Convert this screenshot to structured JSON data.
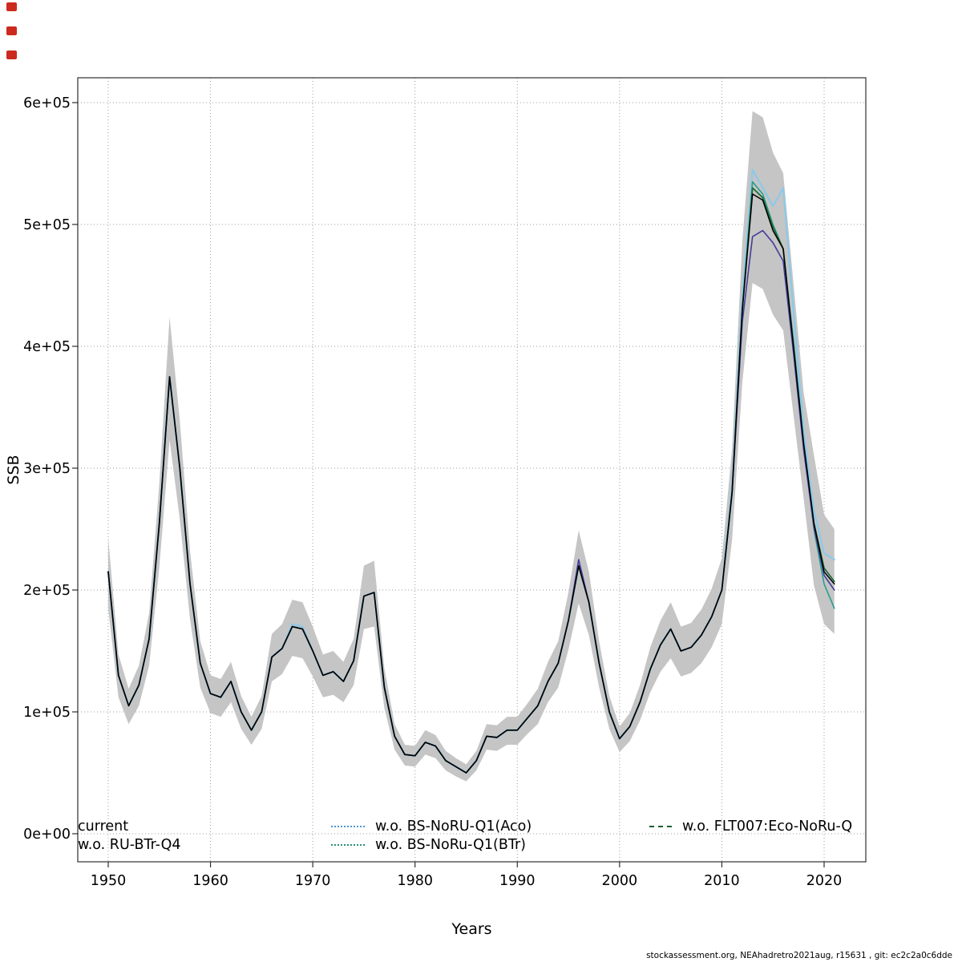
{
  "artifacts": {
    "squares": [
      {
        "color": "#cc2a1e"
      },
      {
        "color": "#cc2a1e"
      },
      {
        "color": "#cc2a1e"
      }
    ]
  },
  "footer": {
    "text": "stockassessment.org, NEAhadretro2021aug, r15631 , git: ec2c2a0c6dde"
  },
  "chart_data": {
    "type": "line",
    "title": "",
    "xlabel": "Years",
    "ylabel": "SSB",
    "xlim": [
      1948.5,
      2023.5
    ],
    "ylim": [
      0,
      620000
    ],
    "grid": true,
    "grid_color": "#9c9c9c",
    "frame_color": "#2f2f2f",
    "x_ticks": [
      1950,
      1960,
      1970,
      1980,
      1990,
      2000,
      2010,
      2020
    ],
    "y_ticks": [
      {
        "value": 0,
        "label": "0e+00"
      },
      {
        "value": 100000,
        "label": "1e+05"
      },
      {
        "value": 200000,
        "label": "2e+05"
      },
      {
        "value": 300000,
        "label": "3e+05"
      },
      {
        "value": 400000,
        "label": "4e+05"
      },
      {
        "value": 500000,
        "label": "5e+05"
      },
      {
        "value": 600000,
        "label": "6e+05"
      }
    ],
    "x": [
      1950,
      1951,
      1952,
      1953,
      1954,
      1955,
      1956,
      1957,
      1958,
      1959,
      1960,
      1961,
      1962,
      1963,
      1964,
      1965,
      1966,
      1967,
      1968,
      1969,
      1970,
      1971,
      1972,
      1973,
      1974,
      1975,
      1976,
      1977,
      1978,
      1979,
      1980,
      1981,
      1982,
      1983,
      1984,
      1985,
      1986,
      1987,
      1988,
      1989,
      1990,
      1991,
      1992,
      1993,
      1994,
      1995,
      1996,
      1997,
      1998,
      1999,
      2000,
      2001,
      2002,
      2003,
      2004,
      2005,
      2006,
      2007,
      2008,
      2009,
      2010,
      2011,
      2012,
      2013,
      2014,
      2015,
      2016,
      2017,
      2018,
      2019,
      2020,
      2021
    ],
    "band": {
      "color": "#c5c5c5",
      "lower": [
        185000,
        112000,
        90000,
        105000,
        138000,
        219000,
        323000,
        258000,
        176000,
        120000,
        99000,
        96000,
        108000,
        86000,
        73000,
        86000,
        125000,
        131000,
        146000,
        144000,
        129000,
        112000,
        114000,
        108000,
        122000,
        168000,
        170000,
        103000,
        69000,
        56000,
        55000,
        65000,
        62000,
        52000,
        47000,
        43000,
        52000,
        69000,
        68000,
        73000,
        73000,
        82000,
        90000,
        108000,
        120000,
        151000,
        189000,
        163000,
        120000,
        86000,
        67000,
        76000,
        93000,
        116000,
        133000,
        144000,
        129000,
        132000,
        140000,
        153000,
        172000,
        241000,
        370000,
        452000,
        447000,
        426000,
        413000,
        344000,
        275000,
        204000,
        172000,
        164000
      ],
      "upper": [
        243000,
        147000,
        119000,
        138000,
        181000,
        288000,
        424000,
        339000,
        232000,
        158000,
        130000,
        127000,
        141000,
        113000,
        96000,
        113000,
        164000,
        172000,
        192000,
        190000,
        170000,
        147000,
        150000,
        141000,
        160000,
        220000,
        224000,
        136000,
        90000,
        73000,
        72000,
        85000,
        81000,
        68000,
        62000,
        57000,
        68000,
        90000,
        89000,
        96000,
        96000,
        107000,
        119000,
        141000,
        158000,
        198000,
        249000,
        215000,
        158000,
        113000,
        88000,
        99000,
        122000,
        153000,
        175000,
        190000,
        170000,
        173000,
        184000,
        201000,
        226000,
        316000,
        486000,
        593000,
        588000,
        559000,
        542000,
        452000,
        362000,
        311000,
        262000,
        250000
      ]
    },
    "series": [
      {
        "id": "current",
        "name": "current",
        "color": "#000000",
        "width": 1.5,
        "z": 5,
        "values": [
          215000,
          130000,
          105000,
          122000,
          160000,
          255000,
          375000,
          300000,
          205000,
          140000,
          115000,
          112000,
          125000,
          100000,
          85000,
          100000,
          145000,
          152000,
          170000,
          168000,
          150000,
          130000,
          133000,
          125000,
          142000,
          195000,
          198000,
          120000,
          80000,
          65000,
          64000,
          75000,
          72000,
          60000,
          55000,
          50000,
          60000,
          80000,
          79000,
          85000,
          85000,
          95000,
          105000,
          125000,
          140000,
          175000,
          220000,
          190000,
          140000,
          100000,
          78000,
          88000,
          108000,
          135000,
          155000,
          168000,
          150000,
          153000,
          163000,
          178000,
          200000,
          280000,
          430000,
          525000,
          520000,
          495000,
          480000,
          400000,
          320000,
          255000,
          215000,
          205000
        ]
      },
      {
        "id": "ru-btr-q4",
        "name": "w.o. RU-BTr-Q4",
        "color": "#453c99",
        "width": 1.6,
        "z": 4,
        "values": [
          215000,
          130000,
          105000,
          122000,
          160000,
          255000,
          375000,
          300000,
          205000,
          140000,
          115000,
          112000,
          125000,
          100000,
          85000,
          100000,
          145000,
          152000,
          170000,
          168000,
          150000,
          130000,
          133000,
          125000,
          142000,
          195000,
          198000,
          120000,
          80000,
          65000,
          64000,
          75000,
          72000,
          60000,
          55000,
          50000,
          60000,
          80000,
          79000,
          85000,
          85000,
          95000,
          105000,
          125000,
          140000,
          175000,
          225000,
          190000,
          140000,
          100000,
          78000,
          88000,
          108000,
          135000,
          155000,
          168000,
          150000,
          153000,
          163000,
          178000,
          200000,
          280000,
          420000,
          490000,
          495000,
          485000,
          470000,
          395000,
          315000,
          252000,
          212000,
          200000
        ]
      },
      {
        "id": "bs-noru-q1-aco",
        "name": "w.o. BS-NoRU-Q1(Aco)",
        "color": "#8cc9e9",
        "width": 2.2,
        "z": 1,
        "values": [
          215000,
          130000,
          105000,
          122000,
          160000,
          255000,
          375000,
          300000,
          205000,
          140000,
          115000,
          112000,
          125000,
          100000,
          85000,
          100000,
          145000,
          152000,
          172000,
          170000,
          150000,
          130000,
          133000,
          125000,
          142000,
          195000,
          198000,
          120000,
          80000,
          65000,
          64000,
          75000,
          72000,
          60000,
          55000,
          50000,
          60000,
          80000,
          79000,
          85000,
          85000,
          95000,
          105000,
          125000,
          140000,
          175000,
          220000,
          190000,
          140000,
          100000,
          78000,
          88000,
          108000,
          135000,
          155000,
          168000,
          150000,
          153000,
          163000,
          178000,
          200000,
          285000,
          440000,
          545000,
          530000,
          515000,
          530000,
          430000,
          330000,
          265000,
          230000,
          225000
        ]
      },
      {
        "id": "bs-noru-q1-btr",
        "name": "w.o. BS-NoRu-Q1(BTr)",
        "color": "#2a9d8f",
        "width": 1.6,
        "z": 2,
        "values": [
          215000,
          130000,
          105000,
          122000,
          160000,
          255000,
          375000,
          300000,
          205000,
          140000,
          115000,
          112000,
          125000,
          100000,
          85000,
          100000,
          145000,
          152000,
          170000,
          168000,
          150000,
          130000,
          133000,
          125000,
          142000,
          195000,
          198000,
          120000,
          80000,
          65000,
          64000,
          75000,
          72000,
          60000,
          55000,
          50000,
          60000,
          80000,
          79000,
          85000,
          85000,
          95000,
          105000,
          125000,
          140000,
          175000,
          220000,
          190000,
          140000,
          100000,
          78000,
          88000,
          108000,
          135000,
          155000,
          168000,
          150000,
          153000,
          163000,
          178000,
          200000,
          280000,
          430000,
          535000,
          525000,
          500000,
          480000,
          405000,
          320000,
          250000,
          205000,
          185000
        ]
      },
      {
        "id": "flt007-eco-noru",
        "name": "w.o. FLT007:Eco-NoRu-Q",
        "color": "#1d6b38",
        "width": 1.8,
        "z": 3,
        "values": [
          215000,
          130000,
          105000,
          122000,
          160000,
          255000,
          375000,
          300000,
          205000,
          140000,
          115000,
          112000,
          125000,
          100000,
          85000,
          100000,
          145000,
          152000,
          170000,
          168000,
          150000,
          130000,
          133000,
          125000,
          142000,
          195000,
          198000,
          120000,
          80000,
          65000,
          64000,
          75000,
          72000,
          60000,
          55000,
          50000,
          60000,
          80000,
          79000,
          85000,
          85000,
          95000,
          105000,
          125000,
          140000,
          175000,
          220000,
          190000,
          140000,
          100000,
          78000,
          88000,
          108000,
          135000,
          155000,
          168000,
          150000,
          153000,
          163000,
          178000,
          200000,
          280000,
          430000,
          530000,
          522000,
          498000,
          480000,
          400000,
          320000,
          255000,
          218000,
          207000
        ]
      }
    ],
    "legend": {
      "row_tops": [
        1020,
        1043
      ],
      "columns": [
        {
          "x": 97,
          "items": [
            {
              "label": "current",
              "color": "#000000",
              "dash": "solid",
              "sample": false
            },
            {
              "label": "w.o. RU-BTr-Q4",
              "color": "#453c99",
              "dash": "solid",
              "sample": false
            }
          ]
        },
        {
          "x": 413,
          "items": [
            {
              "label": "w.o. BS-NoRU-Q1(Aco)",
              "color": "#4f94cd",
              "dash": "dotted",
              "sample": true
            },
            {
              "label": "w.o. BS-NoRu-Q1(BTr)",
              "color": "#2a8f7d",
              "dash": "dotted",
              "sample": true
            }
          ]
        },
        {
          "x": 810,
          "items": [
            {
              "label": "w.o. FLT007:Eco-NoRu-Q",
              "color": "#1b5e33",
              "dash": "dashed",
              "sample": true
            }
          ]
        }
      ]
    }
  }
}
